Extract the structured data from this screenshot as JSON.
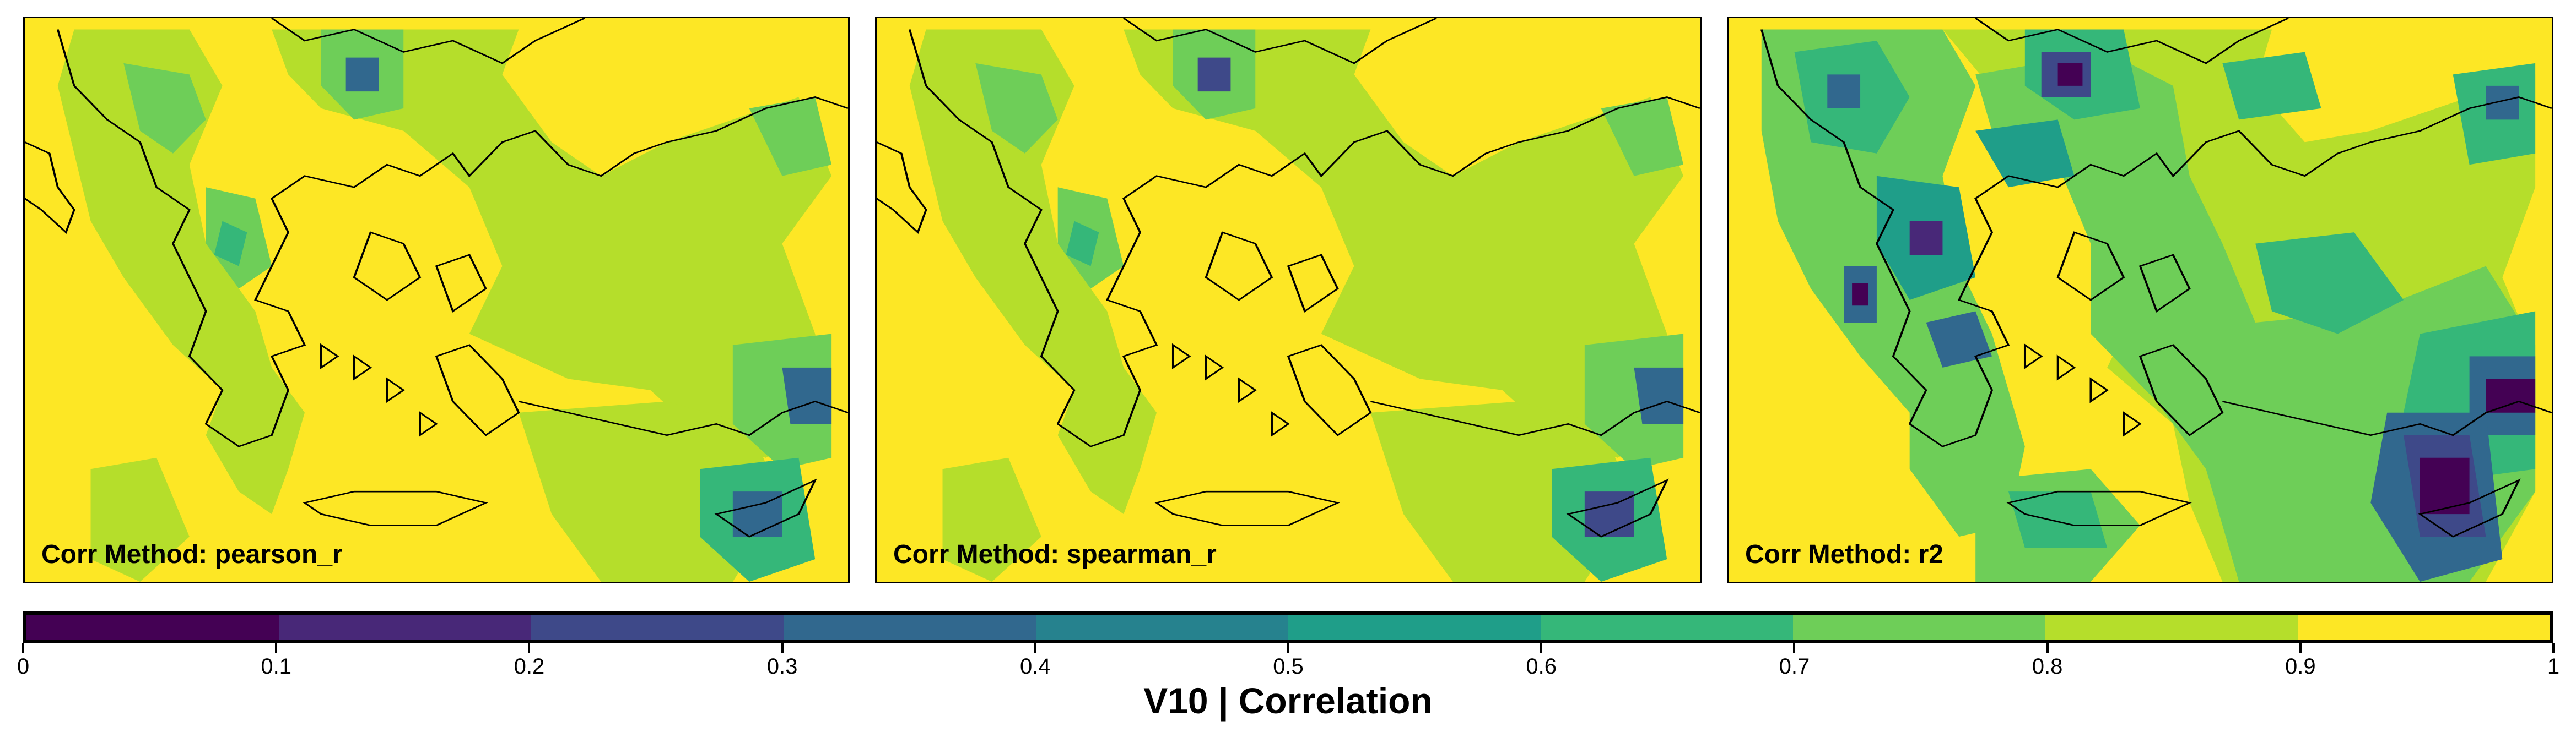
{
  "panels": [
    {
      "label": "Corr Method: pearson_r",
      "method": "pearson_r"
    },
    {
      "label": "Corr Method: spearman_r",
      "method": "spearman_r"
    },
    {
      "label": "Corr Method: r2",
      "method": "r2"
    }
  ],
  "colorbar": {
    "label": "V10 | Correlation",
    "ticks": [
      "0",
      "0.1",
      "0.2",
      "0.3",
      "0.4",
      "0.5",
      "0.6",
      "0.7",
      "0.8",
      "0.9",
      "1"
    ],
    "range": [
      0,
      1
    ],
    "bins": 10,
    "colormap": "viridis",
    "colors": [
      "#440154",
      "#482878",
      "#3e4989",
      "#31688e",
      "#26828e",
      "#1f9e89",
      "#35b779",
      "#6ece58",
      "#b5de2b",
      "#fde725"
    ]
  },
  "map": {
    "region": "Greece, Aegean Sea, Turkey, Cyprus",
    "coastline_color": "#000000"
  }
}
